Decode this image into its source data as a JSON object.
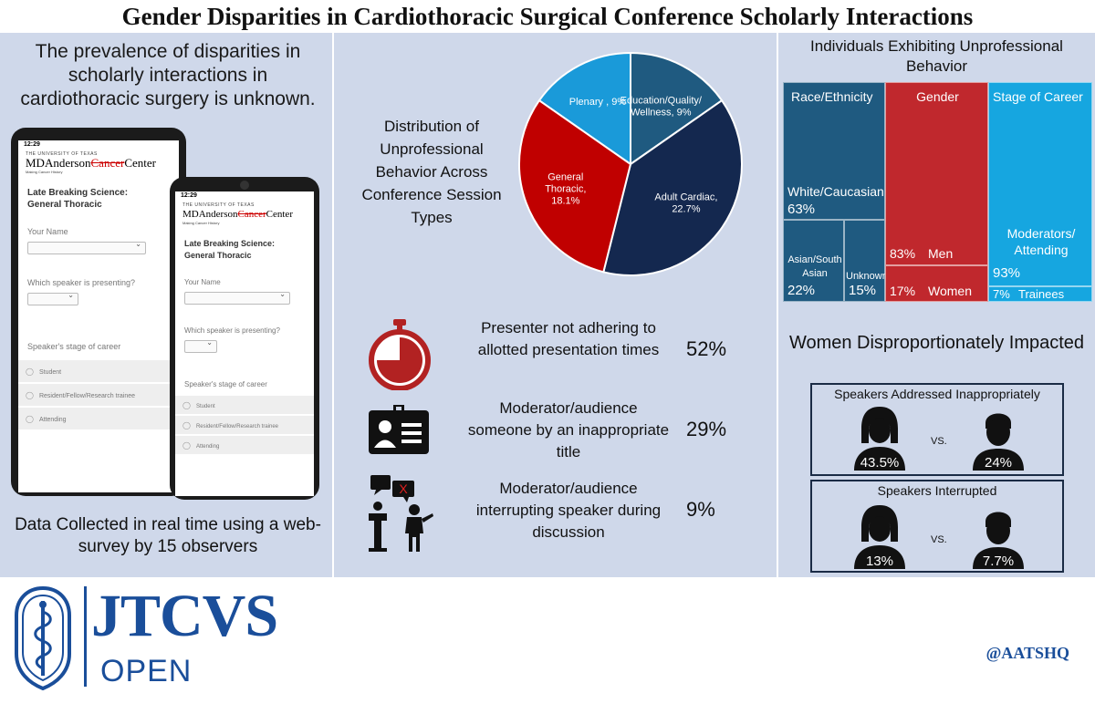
{
  "title": "Gender Disparities in Cardiothoracic Surgical Conference Scholarly Interactions",
  "left": {
    "intro": "The prevalence of disparities in scholarly interactions in cardiothoracic surgery is unknown.",
    "collected": "Data Collected in real time using a web-survey by 15 observers",
    "phone": {
      "time": "12:29",
      "university": "THE UNIVERSITY OF TEXAS",
      "logo_a": "MDAnderson",
      "logo_b": "Cancer",
      "logo_c": "Center",
      "tagline": "Making Cancer History",
      "form_title": "Late Breaking Science: General Thoracic",
      "field_name": "Your Name",
      "field_speaker": "Which speaker is presenting?",
      "field_stage": "Speaker's stage of career",
      "options": [
        "Student",
        "Resident/Fellow/Research trainee",
        "Attending"
      ]
    }
  },
  "middle": {
    "pie_caption": "Distribution of Unprofessional Behavior Across Conference Session Types",
    "metrics": [
      {
        "label": "Presenter not adhering to allotted presentation times",
        "value": "52%",
        "icon": "stopwatch-icon"
      },
      {
        "label": "Moderator/audience someone by an inappropriate title",
        "value": "29%",
        "icon": "id-badge-icon"
      },
      {
        "label": "Moderator/audience interrupting speaker during discussion",
        "value": "9%",
        "icon": "interruption-icon"
      }
    ]
  },
  "chart_data": {
    "type": "pie",
    "slices": [
      {
        "label_lines": [
          "Plenary , 9%"
        ],
        "value": 9,
        "color": "#1a9ad9"
      },
      {
        "label_lines": [
          "Education/Quality/",
          "Wellness, 9%"
        ],
        "value": 9,
        "color": "#1f5a80"
      },
      {
        "label_lines": [
          "Adult Cardiac,",
          "22.7%"
        ],
        "value": 22.7,
        "color": "#14284f"
      },
      {
        "label_lines": [
          "General",
          "Thoracic,",
          "18.1%"
        ],
        "value": 18.1,
        "color": "#c00000"
      }
    ]
  },
  "right": {
    "treemap_title": "Individuals Exhibiting Unprofessional Behavior",
    "race_header": "Race/Ethnicity",
    "gender_header": "Gender",
    "career_header": "Stage of Career",
    "white_label": "White/Caucasian",
    "white_value": "63%",
    "asian_label": "Asian/South Asian",
    "asian_value": "22%",
    "unknown_label": "Unknown",
    "unknown_value": "15%",
    "men_value": "83%",
    "men_label": "Men",
    "women_value": "17%",
    "women_label": "Women",
    "moderators_label": "Moderators/ Attending",
    "moderators_value": "93%",
    "trainees_value": "7%",
    "trainees_label": "Trainees",
    "colors": {
      "race": "#1f5a80",
      "gender": "#c0282d",
      "career": "#16a6e0"
    },
    "women_title": "Women Disproportionately Impacted",
    "addressed": {
      "title": "Speakers Addressed Inappropriately",
      "women": "43.5%",
      "men": "24%",
      "vs": "VS."
    },
    "interrupted": {
      "title": "Speakers Interrupted",
      "women": "13%",
      "men": "7.7%",
      "vs": "VS."
    }
  },
  "footer": {
    "journal": "JTCVS",
    "journal_sub": "OPEN",
    "handle": "@AATSHQ"
  }
}
